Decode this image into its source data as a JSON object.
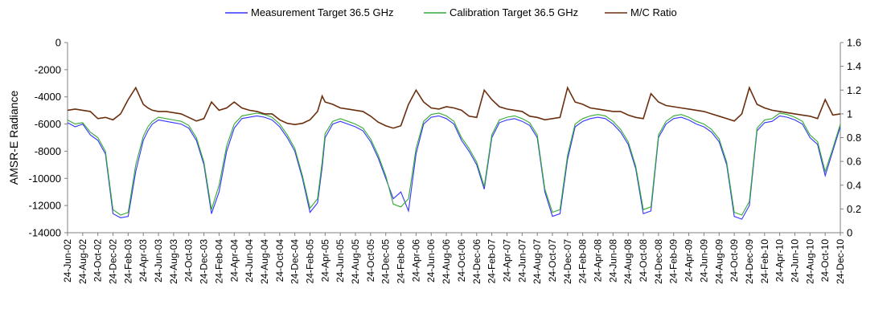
{
  "chart_data": {
    "type": "line",
    "ylabel": "AMSR-E Radiance",
    "y2label": "",
    "ylim": [
      -14000,
      0
    ],
    "y2lim": [
      0,
      1.6
    ],
    "yticks": [
      0,
      -2000,
      -4000,
      -6000,
      -8000,
      -10000,
      -12000,
      -14000
    ],
    "y2ticks": [
      0,
      0.2,
      0.4,
      0.6,
      0.8,
      1,
      1.2,
      1.4,
      1.6
    ],
    "ytick_labels": [
      "0",
      "-2000",
      "-4000",
      "-6000",
      "-8000",
      "-10000",
      "-12000",
      "-14000"
    ],
    "y2tick_labels": [
      "0",
      "0.2",
      "0.4",
      "0.6",
      "0.8",
      "1",
      "1.2",
      "1.4",
      "1.6"
    ],
    "x_categories": [
      "24-Jun-02",
      "24-Aug-02",
      "24-Oct-02",
      "24-Dec-02",
      "24-Feb-03",
      "24-Apr-03",
      "24-Jun-03",
      "24-Aug-03",
      "24-Oct-03",
      "24-Dec-03",
      "24-Feb-04",
      "24-Apr-04",
      "24-Jun-04",
      "24-Aug-04",
      "24-Oct-04",
      "24-Dec-04",
      "24-Feb-05",
      "24-Apr-05",
      "24-Jun-05",
      "24-Aug-05",
      "24-Oct-05",
      "24-Dec-05",
      "24-Feb-06",
      "24-Apr-06",
      "24-Jun-06",
      "24-Aug-06",
      "24-Oct-06",
      "24-Dec-06",
      "24-Feb-07",
      "24-Apr-07",
      "24-Jun-07",
      "24-Aug-07",
      "24-Oct-07",
      "24-Dec-07",
      "24-Feb-08",
      "24-Apr-08",
      "24-Jun-08",
      "24-Aug-08",
      "24-Oct-08",
      "24-Dec-08",
      "24-Feb-09",
      "24-Apr-09",
      "24-Jun-09",
      "24-Aug-09",
      "24-Oct-09",
      "24-Dec-09",
      "24-Feb-10",
      "24-Apr-10",
      "24-Jun-10",
      "24-Aug-10",
      "24-Oct-10",
      "24-Dec-10"
    ],
    "grid": false,
    "legend": "top-center",
    "series": [
      {
        "name": "Measurement Target 36.5 GHz",
        "axis": "left",
        "color": "#3333ff",
        "x": [
          0,
          0.5,
          1,
          1.5,
          2,
          2.5,
          3,
          3.5,
          4,
          4.5,
          5,
          5.3,
          5.6,
          6,
          6.5,
          7,
          7.5,
          8,
          8.5,
          9,
          9.5,
          10,
          10.5,
          11,
          11.5,
          12,
          12.5,
          13,
          13.5,
          14,
          14.5,
          15,
          15.5,
          16,
          16.5,
          16.8,
          17,
          17.5,
          18,
          18.5,
          19,
          19.5,
          20,
          20.5,
          21,
          21.5,
          22,
          22.5,
          23,
          23.5,
          24,
          24.5,
          25,
          25.5,
          26,
          26.5,
          27,
          27.5,
          28,
          28.5,
          29,
          29.5,
          30,
          30.5,
          31,
          31.5,
          32,
          32.5,
          33,
          33.5,
          34,
          34.5,
          35,
          35.5,
          36,
          36.5,
          37,
          37.5,
          38,
          38.5,
          39,
          39.5,
          40,
          40.5,
          41,
          41.5,
          42,
          42.5,
          43,
          43.5,
          44,
          44.5,
          45,
          45.5,
          46,
          46.5,
          47,
          47.5,
          48,
          48.5,
          49,
          49.5,
          50,
          50.5,
          51
        ],
        "values": [
          -5900,
          -6200,
          -6000,
          -6800,
          -7200,
          -8200,
          -12600,
          -12900,
          -12800,
          -9500,
          -7200,
          -6500,
          -6000,
          -5700,
          -5800,
          -5900,
          -6000,
          -6300,
          -7200,
          -9000,
          -12600,
          -11000,
          -8000,
          -6300,
          -5600,
          -5500,
          -5400,
          -5500,
          -5700,
          -6200,
          -7000,
          -8000,
          -10000,
          -12500,
          -11800,
          -9200,
          -7000,
          -6000,
          -5800,
          -6000,
          -6200,
          -6500,
          -7300,
          -8500,
          -10000,
          -11500,
          -11000,
          -12400,
          -8200,
          -6000,
          -5500,
          -5400,
          -5600,
          -6000,
          -7200,
          -8000,
          -9000,
          -10800,
          -7000,
          -5900,
          -5700,
          -5600,
          -5800,
          -6100,
          -7000,
          -11000,
          -12800,
          -12600,
          -8600,
          -6200,
          -5800,
          -5600,
          -5500,
          -5600,
          -6000,
          -6600,
          -7500,
          -9300,
          -12600,
          -12400,
          -7000,
          -6000,
          -5600,
          -5500,
          -5700,
          -6000,
          -6200,
          -6600,
          -7300,
          -9000,
          -12800,
          -13000,
          -12000,
          -6500,
          -5900,
          -5800,
          -5400,
          -5500,
          -5700,
          -6000,
          -7000,
          -7500,
          -9800,
          -8000,
          -6200
        ]
      },
      {
        "name": "Calibration Target 36.5 GHz",
        "axis": "left",
        "color": "#33aa33",
        "x": [
          0,
          0.5,
          1,
          1.5,
          2,
          2.5,
          3,
          3.5,
          4,
          4.5,
          5,
          5.3,
          5.6,
          6,
          6.5,
          7,
          7.5,
          8,
          8.5,
          9,
          9.5,
          10,
          10.5,
          11,
          11.5,
          12,
          12.5,
          13,
          13.5,
          14,
          14.5,
          15,
          15.5,
          16,
          16.5,
          16.8,
          17,
          17.5,
          18,
          18.5,
          19,
          19.5,
          20,
          20.5,
          21,
          21.5,
          22,
          22.5,
          23,
          23.5,
          24,
          24.5,
          25,
          25.5,
          26,
          26.5,
          27,
          27.5,
          28,
          28.5,
          29,
          29.5,
          30,
          30.5,
          31,
          31.5,
          32,
          32.5,
          33,
          33.5,
          34,
          34.5,
          35,
          35.5,
          36,
          36.5,
          37,
          37.5,
          38,
          38.5,
          39,
          39.5,
          40,
          40.5,
          41,
          41.5,
          42,
          42.5,
          43,
          43.5,
          44,
          44.5,
          45,
          45.5,
          46,
          46.5,
          47,
          47.5,
          48,
          48.5,
          49,
          49.5,
          50,
          50.5,
          51
        ],
        "values": [
          -5700,
          -6000,
          -5900,
          -6600,
          -7000,
          -8000,
          -12300,
          -12700,
          -12500,
          -9000,
          -6900,
          -6200,
          -5800,
          -5500,
          -5600,
          -5700,
          -5800,
          -6100,
          -7000,
          -8800,
          -12300,
          -10500,
          -7600,
          -6000,
          -5400,
          -5300,
          -5200,
          -5300,
          -5500,
          -6000,
          -6800,
          -7800,
          -9800,
          -12200,
          -11500,
          -8800,
          -6700,
          -5800,
          -5600,
          -5800,
          -6000,
          -6300,
          -7100,
          -8300,
          -9800,
          -11900,
          -12100,
          -11500,
          -7800,
          -5800,
          -5300,
          -5200,
          -5400,
          -5800,
          -7000,
          -7800,
          -8800,
          -10600,
          -6800,
          -5700,
          -5500,
          -5400,
          -5600,
          -5900,
          -6800,
          -10800,
          -12500,
          -12300,
          -8300,
          -6000,
          -5600,
          -5400,
          -5300,
          -5400,
          -5800,
          -6400,
          -7300,
          -9100,
          -12300,
          -12100,
          -6800,
          -5800,
          -5400,
          -5300,
          -5500,
          -5800,
          -6000,
          -6400,
          -7100,
          -8800,
          -12500,
          -12700,
          -11700,
          -6300,
          -5700,
          -5600,
          -5200,
          -5300,
          -5500,
          -5800,
          -6800,
          -7300,
          -9500,
          -7800,
          -6000
        ]
      },
      {
        "name": "M/C Ratio",
        "axis": "right",
        "color": "#6b2e0e",
        "x": [
          0,
          0.5,
          1,
          1.5,
          2,
          2.5,
          3,
          3.5,
          4,
          4.5,
          5,
          5.3,
          5.6,
          6,
          6.5,
          7,
          7.5,
          8,
          8.5,
          9,
          9.5,
          10,
          10.5,
          11,
          11.5,
          12,
          12.5,
          13,
          13.5,
          14,
          14.5,
          15,
          15.5,
          16,
          16.5,
          16.8,
          17,
          17.5,
          18,
          18.5,
          19,
          19.5,
          20,
          20.5,
          21,
          21.5,
          22,
          22.5,
          23,
          23.5,
          24,
          24.5,
          25,
          25.5,
          26,
          26.5,
          27,
          27.5,
          28,
          28.5,
          29,
          29.5,
          30,
          30.5,
          31,
          31.5,
          32,
          32.5,
          33,
          33.5,
          34,
          34.5,
          35,
          35.5,
          36,
          36.5,
          37,
          37.5,
          38,
          38.5,
          39,
          39.5,
          40,
          40.5,
          41,
          41.5,
          42,
          42.5,
          43,
          43.5,
          44,
          44.5,
          45,
          45.5,
          46,
          46.5,
          47,
          47.5,
          48,
          48.5,
          49,
          49.5,
          50,
          50.5,
          51
        ],
        "values": [
          1.03,
          1.04,
          1.03,
          1.02,
          0.96,
          0.97,
          0.95,
          1.0,
          1.12,
          1.22,
          1.08,
          1.05,
          1.03,
          1.02,
          1.02,
          1.01,
          1.0,
          0.97,
          0.94,
          0.96,
          1.1,
          1.03,
          1.05,
          1.1,
          1.05,
          1.03,
          1.02,
          1.0,
          1.0,
          0.95,
          0.92,
          0.91,
          0.92,
          0.95,
          1.02,
          1.15,
          1.1,
          1.08,
          1.05,
          1.04,
          1.03,
          1.02,
          0.98,
          0.93,
          0.9,
          0.88,
          0.9,
          1.08,
          1.2,
          1.1,
          1.05,
          1.04,
          1.06,
          1.05,
          1.03,
          0.98,
          0.97,
          1.2,
          1.12,
          1.06,
          1.04,
          1.03,
          1.02,
          0.98,
          0.97,
          0.95,
          0.96,
          0.97,
          1.22,
          1.1,
          1.08,
          1.05,
          1.04,
          1.03,
          1.02,
          1.02,
          0.99,
          0.97,
          0.96,
          1.17,
          1.1,
          1.07,
          1.06,
          1.05,
          1.04,
          1.03,
          1.02,
          1.0,
          0.98,
          0.96,
          0.94,
          1.0,
          1.22,
          1.08,
          1.05,
          1.03,
          1.02,
          1.01,
          1.0,
          0.99,
          0.98,
          0.96,
          1.12,
          0.99,
          1.0
        ]
      }
    ]
  }
}
